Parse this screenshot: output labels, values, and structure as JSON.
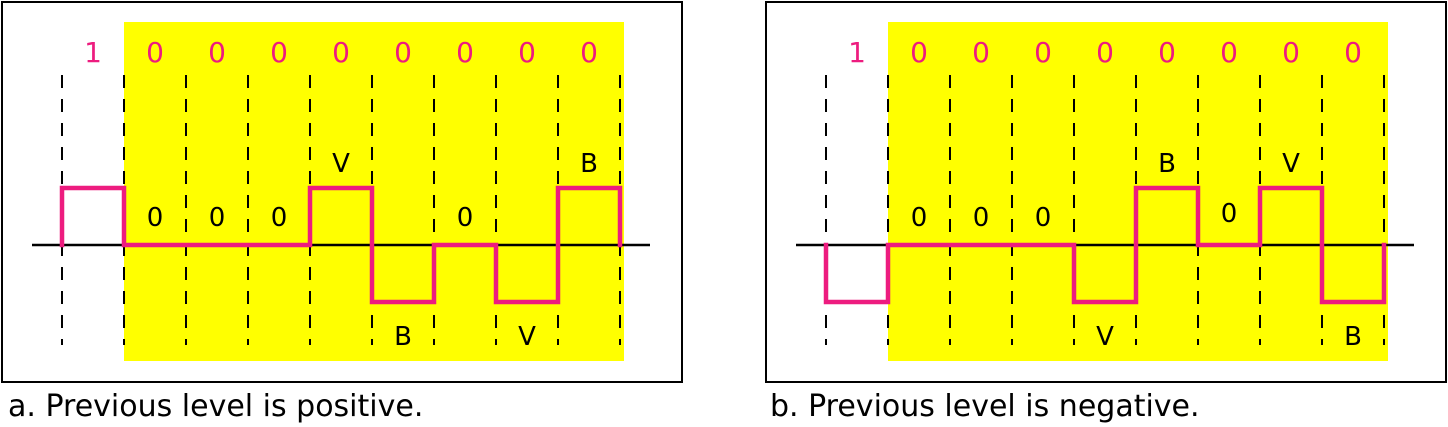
{
  "colors": {
    "signal": "#ed1c7f",
    "highlight": "#ffff00",
    "axis": "#000000",
    "frame": "#000000"
  },
  "panels": [
    {
      "id": "a",
      "caption": "a. Previous level is positive.",
      "bits": [
        "1",
        "0",
        "0",
        "0",
        "0",
        "0",
        "0",
        "0",
        "0"
      ],
      "symbols": [
        "",
        "0",
        "0",
        "0",
        "V",
        "B",
        "0",
        "V",
        "B"
      ],
      "levels": [
        1,
        0,
        0,
        0,
        1,
        -1,
        0,
        -1,
        1
      ]
    },
    {
      "id": "b",
      "caption": "b. Previous level is negative.",
      "bits": [
        "1",
        "0",
        "0",
        "0",
        "0",
        "0",
        "0",
        "0",
        "0"
      ],
      "symbols": [
        "",
        "0",
        "0",
        "0",
        "V",
        "B",
        "0",
        "V",
        "B"
      ],
      "levels": [
        -1,
        0,
        0,
        0,
        -1,
        1,
        0,
        1,
        -1
      ]
    }
  ]
}
